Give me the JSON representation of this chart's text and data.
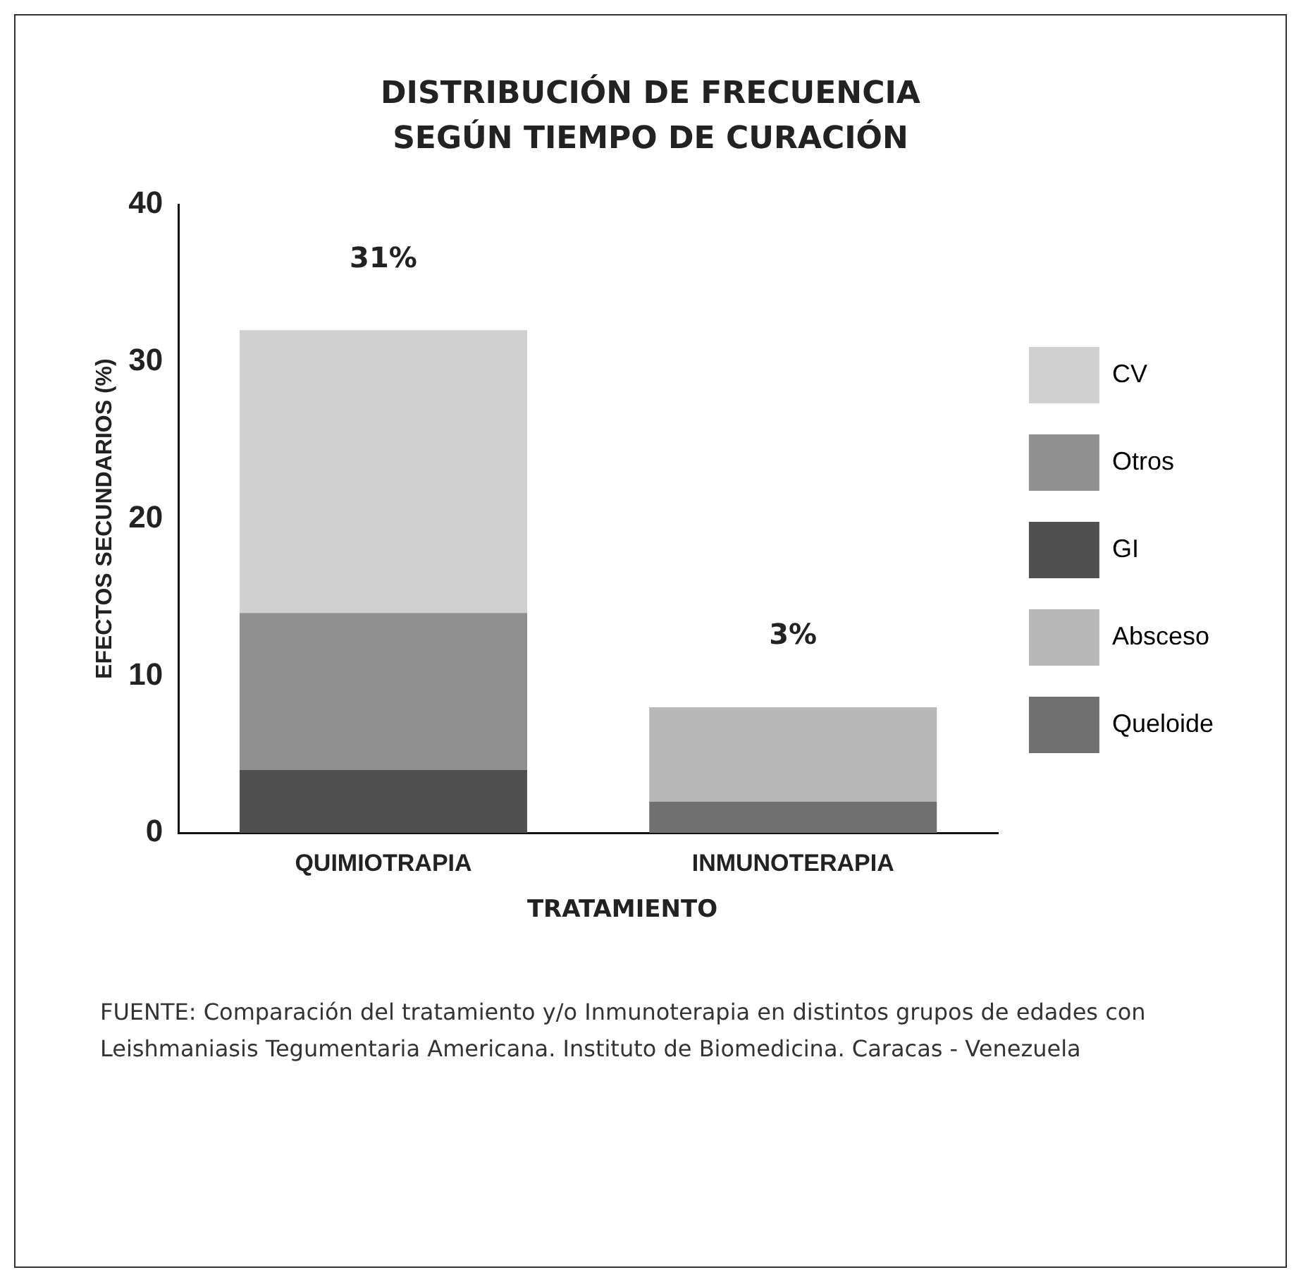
{
  "chart_data": {
    "type": "bar",
    "title": "DISTRIBUCIÓN DE FRECUENCIA SEGÚN TIEMPO DE CURACIÓN",
    "xlabel": "TRATAMIENTO",
    "ylabel": "EFECTOS SECUNDARIOS (%)",
    "categories": [
      "QUIMIOTRAPIA",
      "INMUNOTERAPIA"
    ],
    "stacked": true,
    "series": [
      {
        "name": "Queloide",
        "color": "#707070",
        "values": [
          null,
          2
        ]
      },
      {
        "name": "Absceso",
        "color": "#b8b8b8",
        "values": [
          null,
          6
        ]
      },
      {
        "name": "GI",
        "color": "#505050",
        "values": [
          4,
          null
        ]
      },
      {
        "name": "Otros",
        "color": "#909090",
        "values": [
          10,
          null
        ]
      },
      {
        "name": "CV",
        "color": "#d0d0d0",
        "values": [
          18,
          null
        ]
      }
    ],
    "ylim": [
      0,
      40
    ],
    "yticks": [
      0,
      10,
      20,
      30,
      40
    ],
    "grid": false,
    "legend": "right",
    "annotations": [
      {
        "text": "31%",
        "x": "QUIMIOTRAPIA",
        "y": 32
      },
      {
        "text": "3%",
        "x": "INMUNOTERAPIA",
        "y": 8
      },
      "FUENTE: Comparación del tratamiento y/o Inmunoterapia en distintos grupos de edades con Leishmaniasis Tegumentaria Americana. Instituto de Biomedicina. Caracas - Venezuela"
    ]
  }
}
